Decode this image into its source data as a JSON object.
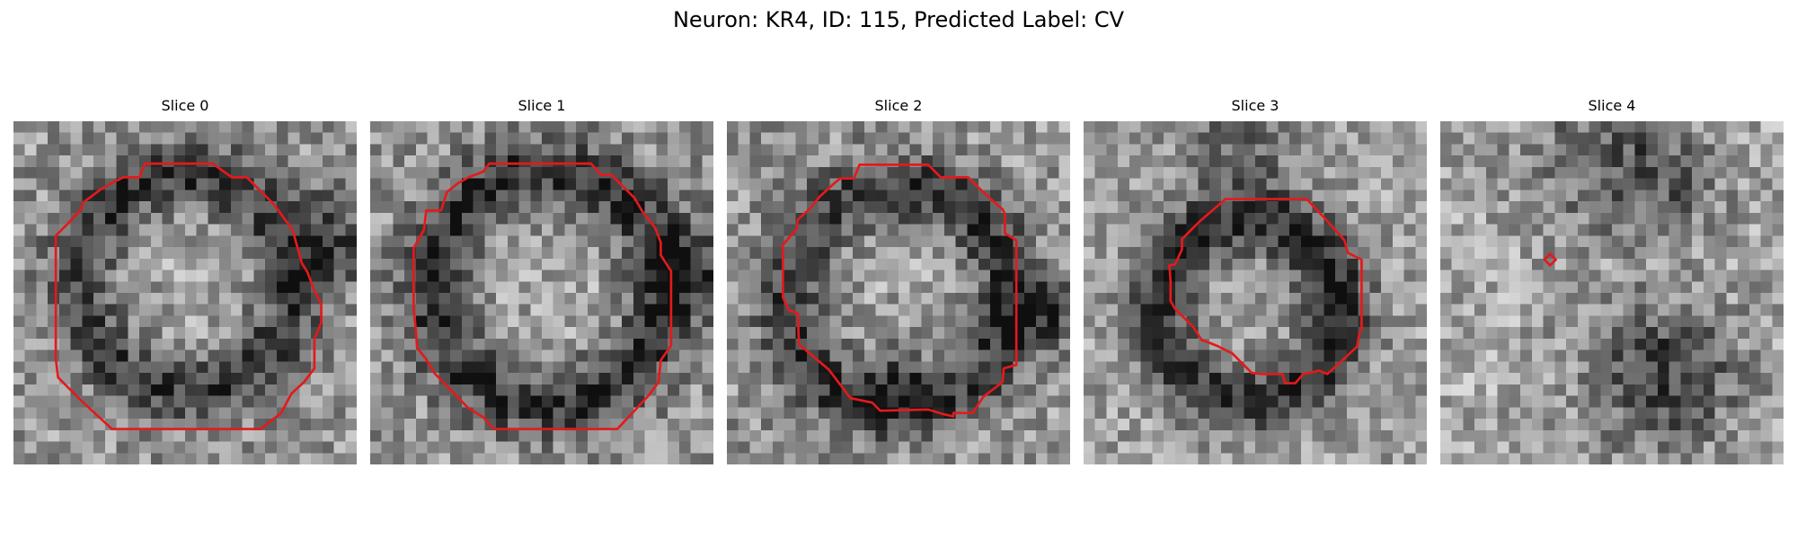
{
  "title": "Neuron: KR4, ID: 115, Predicted Label: CV",
  "colors": {
    "contour": "#e31a1c",
    "background": "#ffffff"
  },
  "slices": [
    {
      "label": "Slice 0"
    },
    {
      "label": "Slice 1"
    },
    {
      "label": "Slice 2"
    },
    {
      "label": "Slice 3"
    },
    {
      "label": "Slice 4"
    }
  ]
}
